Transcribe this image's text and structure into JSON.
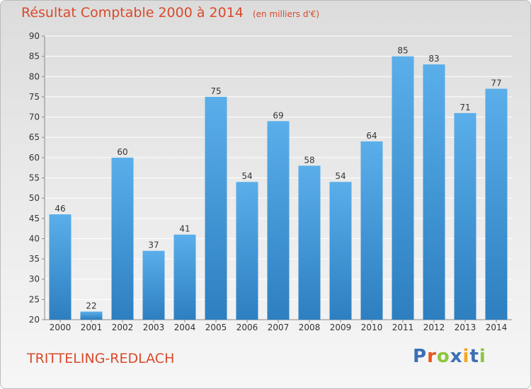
{
  "title": "Résultat Comptable 2000 à 2014",
  "subtitle": "(en milliers d'€)",
  "place": "TRITTELING-REDLACH",
  "logo": {
    "text": "Proxiti",
    "colors": [
      "#3a6fb5",
      "#e8571a",
      "#8cc63f",
      "#3a6fb5",
      "#f5a623",
      "#3a6fb5",
      "#8cc63f"
    ]
  },
  "colors": {
    "accent": "#d94a2b",
    "bar_top": "#5aaeea",
    "bar_bottom": "#2d7fc0",
    "grid": "#ffffff",
    "axis_text": "#333333"
  },
  "chart_data": {
    "type": "bar",
    "categories": [
      "2000",
      "2001",
      "2002",
      "2003",
      "2004",
      "2005",
      "2006",
      "2007",
      "2008",
      "2009",
      "2010",
      "2011",
      "2012",
      "2013",
      "2014"
    ],
    "values": [
      46,
      22,
      60,
      37,
      41,
      75,
      54,
      69,
      58,
      54,
      64,
      85,
      83,
      71,
      77
    ],
    "data_labels": [
      "46",
      "22",
      "60",
      "37",
      "41",
      "75",
      "54",
      "69",
      "58",
      "54",
      "64",
      "85",
      "83",
      "71",
      "77"
    ],
    "ylim": [
      20,
      90
    ],
    "yticks": [
      20,
      25,
      30,
      35,
      40,
      45,
      50,
      55,
      60,
      65,
      70,
      75,
      80,
      85,
      90
    ],
    "grid": true,
    "xlabel": "",
    "ylabel": ""
  }
}
